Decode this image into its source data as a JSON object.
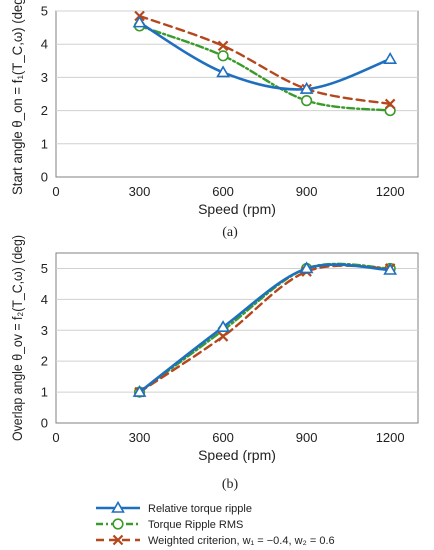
{
  "chart_data": [
    {
      "type": "line",
      "panel_label": "(a)",
      "xlabel": "Speed (rpm)",
      "ylabel": "Start angle θ_on = f₁(T_C,ω) (deg)",
      "x": [
        300,
        600,
        900,
        1200
      ],
      "xlim": [
        0,
        1300
      ],
      "xticks": [
        0,
        300,
        600,
        900,
        1200
      ],
      "ylim": [
        0,
        5
      ],
      "yticks": [
        0,
        1,
        2,
        3,
        4,
        5
      ],
      "grid": true,
      "series": [
        {
          "name": "Relative torque ripple",
          "values": [
            4.65,
            3.15,
            2.65,
            3.55
          ]
        },
        {
          "name": "Torque Ripple RMS",
          "values": [
            4.55,
            3.65,
            2.3,
            2.0
          ]
        },
        {
          "name": "Weighted criterion, w₁ = −0.4, w₂ = 0.6",
          "values": [
            4.85,
            3.95,
            2.65,
            2.2
          ]
        }
      ]
    },
    {
      "type": "line",
      "panel_label": "(b)",
      "xlabel": "Speed (rpm)",
      "ylabel": "Overlap angle θ_ov = f₂(T_C,ω) (deg)",
      "x": [
        300,
        600,
        900,
        1200
      ],
      "xlim": [
        0,
        1300
      ],
      "xticks": [
        0,
        300,
        600,
        900,
        1200
      ],
      "ylim": [
        0,
        5.5
      ],
      "yticks": [
        0,
        1,
        2,
        3,
        4,
        5
      ],
      "grid": true,
      "series": [
        {
          "name": "Relative torque ripple",
          "values": [
            1.0,
            3.1,
            5.0,
            4.95
          ]
        },
        {
          "name": "Torque Ripple RMS",
          "values": [
            1.0,
            3.0,
            5.0,
            5.0
          ]
        },
        {
          "name": "Weighted criterion, w₁ = −0.4, w₂ = 0.6",
          "values": [
            1.0,
            2.8,
            4.9,
            5.0
          ]
        }
      ]
    }
  ],
  "styles": {
    "series_colors": [
      "#1f6fbf",
      "#3a9a2a",
      "#b5471d"
    ],
    "series_markers": [
      "triangle",
      "circle",
      "x"
    ],
    "grid_color": "#d0d0d0",
    "axis_color": "#808080"
  }
}
